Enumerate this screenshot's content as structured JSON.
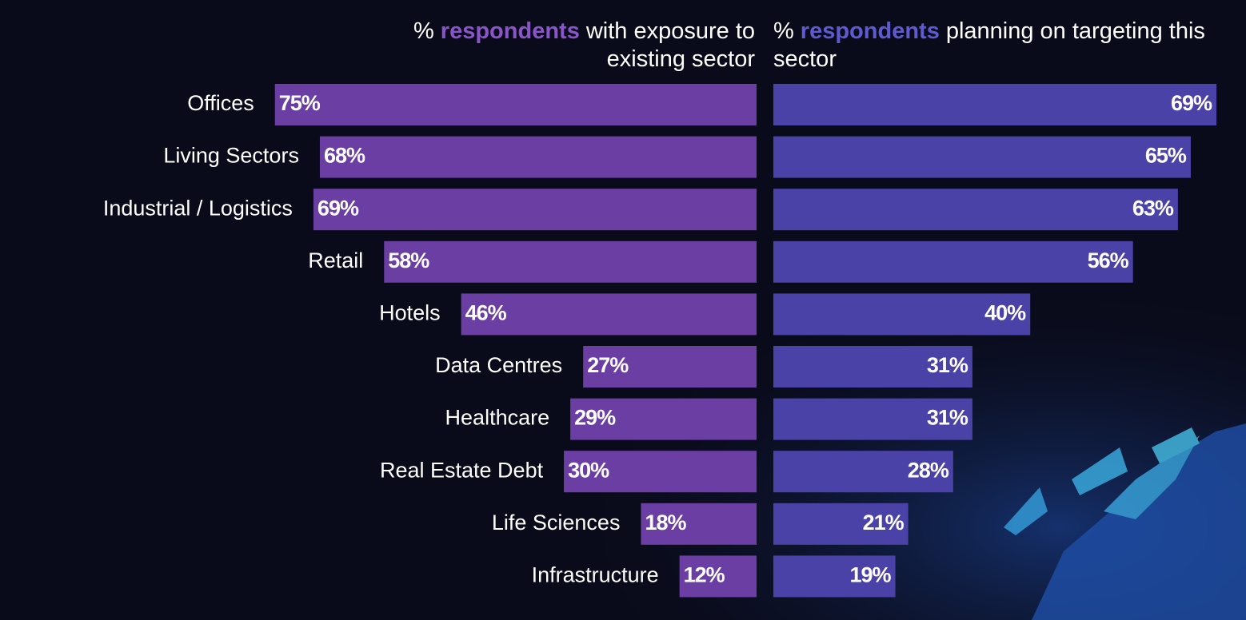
{
  "chart_data": {
    "type": "butterfly",
    "categories": [
      "Offices",
      "Living Sectors",
      "Industrial / Logistics",
      "Retail",
      "Hotels",
      "Data Centres",
      "Healthcare",
      "Real Estate Debt",
      "Life Sciences",
      "Infrastructure"
    ],
    "series": [
      {
        "name_parts": [
          "%",
          "respondents",
          "with exposure to existing sector"
        ],
        "color": "#6a3ea3",
        "highlight_color": "#8a55c8",
        "values": [
          75,
          68,
          69,
          58,
          46,
          27,
          29,
          30,
          18,
          12
        ],
        "value_labels": [
          "75%",
          "68%",
          "69%",
          "58%",
          "46%",
          "27%",
          "29%",
          "30%",
          "18%",
          "12%"
        ]
      },
      {
        "name_parts": [
          "%",
          "respondents",
          "planning on targeting this sector"
        ],
        "color": "#4a42a6",
        "highlight_color": "#5e5ad0",
        "values": [
          69,
          65,
          63,
          56,
          40,
          31,
          31,
          28,
          21,
          19
        ],
        "value_labels": [
          "69%",
          "65%",
          "63%",
          "56%",
          "40%",
          "31%",
          "31%",
          "28%",
          "21%",
          "19%"
        ]
      }
    ]
  }
}
